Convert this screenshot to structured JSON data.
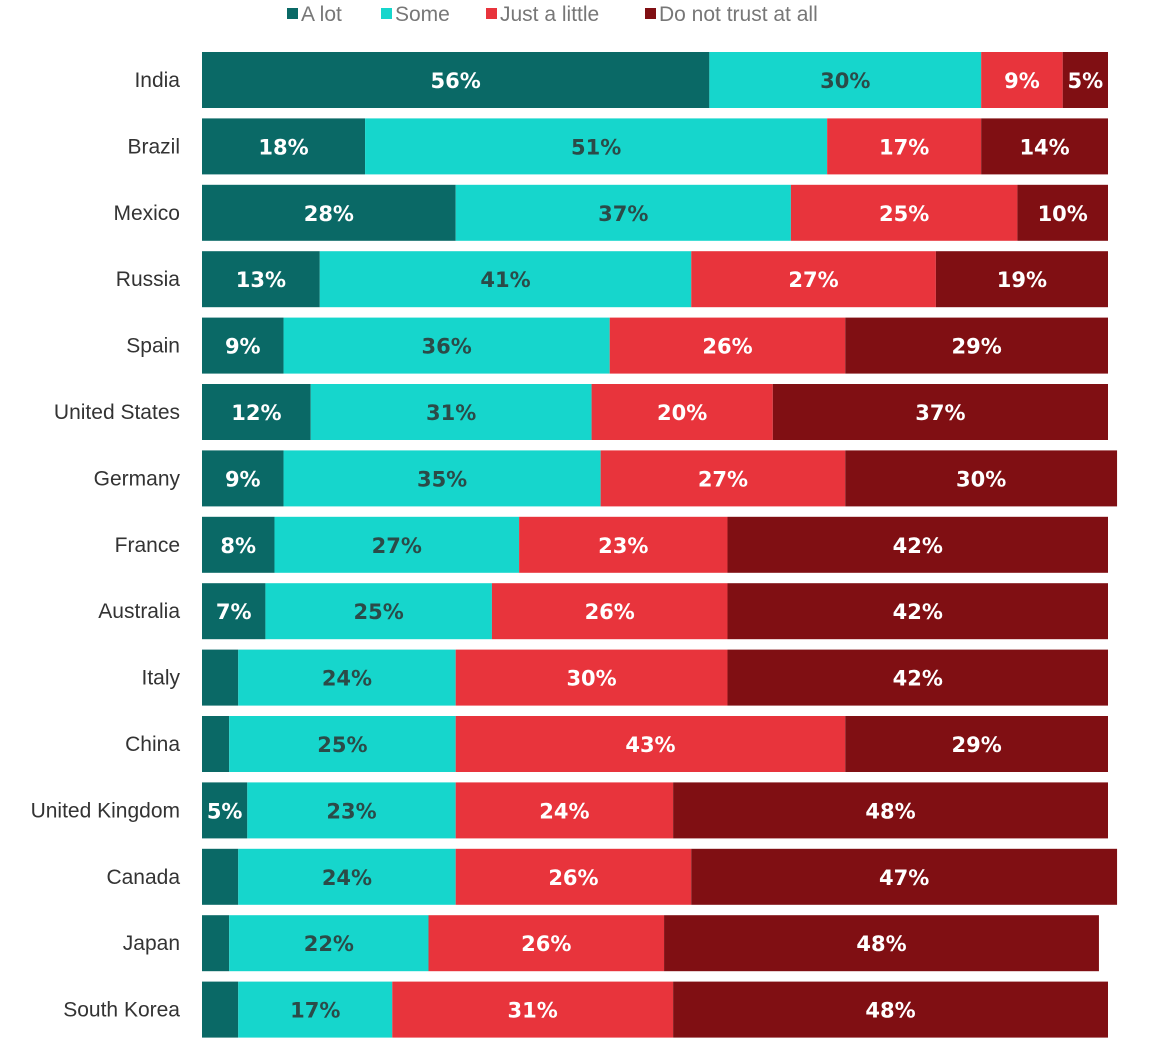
{
  "chart_data": {
    "type": "bar",
    "orientation": "horizontal",
    "stacked": true,
    "title": "",
    "xlabel": "",
    "ylabel": "",
    "xlim": [
      0,
      100
    ],
    "legend_position": "top",
    "grid": false,
    "categories": [
      "India",
      "Brazil",
      "Mexico",
      "Russia",
      "Spain",
      "United States",
      "Germany",
      "France",
      "Australia",
      "Italy",
      "China",
      "United Kingdom",
      "Canada",
      "Japan",
      "South Korea"
    ],
    "series": [
      {
        "name": "A lot",
        "color": "#0a6966",
        "text_color": "#ffffff",
        "values": [
          56,
          18,
          28,
          13,
          9,
          12,
          9,
          8,
          7,
          4,
          3,
          5,
          4,
          3,
          4
        ],
        "labels": [
          "56%",
          "18%",
          "28%",
          "13%",
          "9%",
          "12%",
          "9%",
          "8%",
          "7%",
          "",
          "",
          "5%",
          "",
          "",
          ""
        ]
      },
      {
        "name": "Some",
        "color": "#16d6cc",
        "text_color": "#2b4b48",
        "values": [
          30,
          51,
          37,
          41,
          36,
          31,
          35,
          27,
          25,
          24,
          25,
          23,
          24,
          22,
          17
        ],
        "labels": [
          "30%",
          "51%",
          "37%",
          "41%",
          "36%",
          "31%",
          "35%",
          "27%",
          "25%",
          "24%",
          "25%",
          "23%",
          "24%",
          "22%",
          "17%"
        ]
      },
      {
        "name": "Just a little",
        "color": "#e8343c",
        "text_color": "#ffffff",
        "values": [
          9,
          17,
          25,
          27,
          26,
          20,
          27,
          23,
          26,
          30,
          43,
          24,
          26,
          26,
          31
        ],
        "labels": [
          "9%",
          "17%",
          "25%",
          "27%",
          "26%",
          "20%",
          "27%",
          "23%",
          "26%",
          "30%",
          "43%",
          "24%",
          "26%",
          "26%",
          "31%"
        ]
      },
      {
        "name": "Do not trust at all",
        "color": "#800f13",
        "text_color": "#ffffff",
        "values": [
          5,
          14,
          10,
          19,
          29,
          37,
          30,
          42,
          42,
          42,
          29,
          48,
          47,
          48,
          48
        ],
        "labels": [
          "5%",
          "14%",
          "10%",
          "19%",
          "29%",
          "37%",
          "30%",
          "42%",
          "42%",
          "42%",
          "29%",
          "48%",
          "47%",
          "48%",
          "48%"
        ]
      }
    ]
  }
}
